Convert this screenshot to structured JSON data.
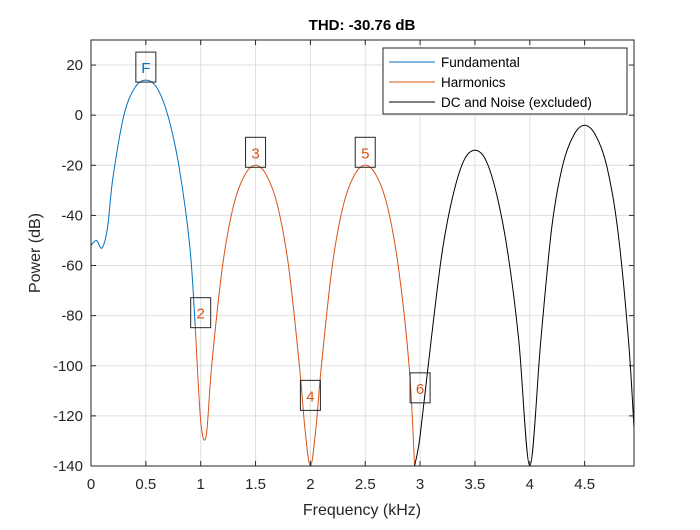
{
  "chart_data": {
    "type": "line",
    "title": "THD: -30.76 dB",
    "xlabel": "Frequency (kHz)",
    "ylabel": "Power (dB)",
    "xlim": [
      0,
      4.95
    ],
    "ylim": [
      -140,
      30
    ],
    "xticks": [
      0,
      0.5,
      1,
      1.5,
      2,
      2.5,
      3,
      3.5,
      4,
      4.5
    ],
    "xtick_labels": [
      "0",
      "0.5",
      "1",
      "1.5",
      "2",
      "2.5",
      "3",
      "3.5",
      "4",
      "4.5"
    ],
    "yticks": [
      -140,
      -120,
      -100,
      -80,
      -60,
      -40,
      -20,
      0,
      20
    ],
    "ytick_labels": [
      "-140",
      "-120",
      "-100",
      "-80",
      "-60",
      "-40",
      "-20",
      "0",
      "20"
    ],
    "grid": true,
    "legend_position": "top-right",
    "series": [
      {
        "name": "Fundamental",
        "color": "#0072BD",
        "x": [
          0,
          0.05,
          0.1,
          0.15,
          0.2,
          0.3,
          0.4,
          0.5,
          0.6,
          0.7,
          0.8,
          0.9,
          0.95
        ],
        "y": [
          -52,
          -50,
          -53,
          -45,
          -25,
          0,
          11,
          14,
          11,
          0,
          -20,
          -52,
          -84
        ]
      },
      {
        "name": "Harmonics",
        "color": "#D95319",
        "x": [
          0.95,
          1.0,
          1.05,
          1.1,
          1.2,
          1.3,
          1.4,
          1.5,
          1.6,
          1.7,
          1.8,
          1.9,
          1.95,
          2.0,
          2.05,
          2.1,
          2.2,
          2.3,
          2.4,
          2.5,
          2.6,
          2.7,
          2.8,
          2.9,
          2.95
        ],
        "y": [
          -84,
          -122,
          -128,
          -100,
          -60,
          -36,
          -24,
          -20,
          -24,
          -36,
          -60,
          -100,
          -125,
          -140,
          -125,
          -100,
          -60,
          -36,
          -24,
          -20,
          -24,
          -36,
          -60,
          -100,
          -140
        ]
      },
      {
        "name": "DC and Noise (excluded)",
        "color": "#000000",
        "x": [
          2.95,
          3.0,
          3.1,
          3.2,
          3.3,
          3.4,
          3.5,
          3.6,
          3.7,
          3.8,
          3.9,
          4.0,
          4.1,
          4.2,
          4.3,
          4.4,
          4.5,
          4.6,
          4.7,
          4.8,
          4.9,
          4.95
        ],
        "y": [
          -140,
          -128,
          -90,
          -55,
          -32,
          -18,
          -14,
          -18,
          -32,
          -55,
          -90,
          -140,
          -90,
          -45,
          -20,
          -8,
          -4,
          -8,
          -20,
          -45,
          -90,
          -125
        ]
      }
    ],
    "annotations": [
      {
        "label": "F",
        "x": 0.5,
        "y": 14,
        "color": "#0072BD"
      },
      {
        "label": "2",
        "x": 1.0,
        "y": -84,
        "color": "#D95319"
      },
      {
        "label": "3",
        "x": 1.5,
        "y": -20,
        "color": "#D95319"
      },
      {
        "label": "4",
        "x": 2.0,
        "y": -117,
        "color": "#D95319"
      },
      {
        "label": "5",
        "x": 2.5,
        "y": -20,
        "color": "#D95319"
      },
      {
        "label": "6",
        "x": 3.0,
        "y": -114,
        "color": "#D95319"
      }
    ]
  }
}
